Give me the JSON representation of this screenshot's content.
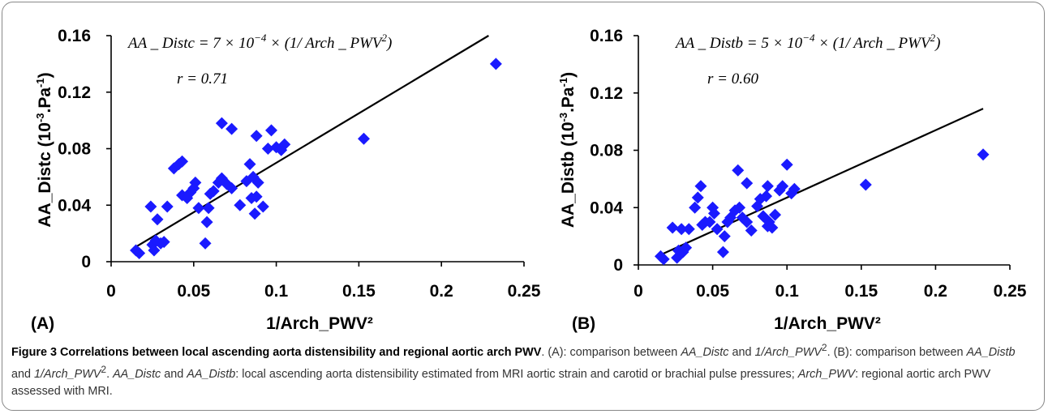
{
  "chart_data": [
    {
      "type": "scatter",
      "panel_label": "(A)",
      "xlabel": "1/Arch_PWV²",
      "ylabel_main": "AA_Distc (10",
      "ylabel_exp1": "-3",
      "ylabel_mid": ".Pa",
      "ylabel_exp2": "-1",
      "ylabel_end": ")",
      "equation_lhs": "AA _ Distc = 7 × 10",
      "equation_exp": "−4",
      "equation_rhs": " × (1/ Arch _ PWV",
      "equation_sq": "2",
      "equation_close": ")",
      "r_label": "r = 0.71",
      "xlim": [
        0,
        0.25
      ],
      "ylim": [
        0,
        0.16
      ],
      "x_ticks": [
        "0",
        "0.05",
        "0.1",
        "0.15",
        "0.2",
        "0.25"
      ],
      "y_ticks": [
        "0",
        "0.04",
        "0.08",
        "0.12",
        "0.16"
      ],
      "fit": {
        "slope": 0.7,
        "x_start": 0.015,
        "x_end": 0.23
      },
      "marker_color": "#1a1aff",
      "points": [
        [
          0.015,
          0.008
        ],
        [
          0.017,
          0.006
        ],
        [
          0.024,
          0.039
        ],
        [
          0.025,
          0.012
        ],
        [
          0.026,
          0.008
        ],
        [
          0.027,
          0.015
        ],
        [
          0.028,
          0.03
        ],
        [
          0.03,
          0.013
        ],
        [
          0.032,
          0.014
        ],
        [
          0.034,
          0.039
        ],
        [
          0.038,
          0.066
        ],
        [
          0.041,
          0.069
        ],
        [
          0.043,
          0.071
        ],
        [
          0.043,
          0.047
        ],
        [
          0.046,
          0.045
        ],
        [
          0.048,
          0.049
        ],
        [
          0.05,
          0.052
        ],
        [
          0.051,
          0.056
        ],
        [
          0.053,
          0.038
        ],
        [
          0.057,
          0.013
        ],
        [
          0.058,
          0.028
        ],
        [
          0.059,
          0.038
        ],
        [
          0.06,
          0.048
        ],
        [
          0.062,
          0.05
        ],
        [
          0.065,
          0.056
        ],
        [
          0.067,
          0.098
        ],
        [
          0.067,
          0.059
        ],
        [
          0.07,
          0.055
        ],
        [
          0.073,
          0.094
        ],
        [
          0.073,
          0.052
        ],
        [
          0.078,
          0.04
        ],
        [
          0.082,
          0.057
        ],
        [
          0.084,
          0.069
        ],
        [
          0.085,
          0.045
        ],
        [
          0.086,
          0.06
        ],
        [
          0.087,
          0.034
        ],
        [
          0.088,
          0.089
        ],
        [
          0.088,
          0.046
        ],
        [
          0.089,
          0.056
        ],
        [
          0.092,
          0.039
        ],
        [
          0.095,
          0.08
        ],
        [
          0.097,
          0.093
        ],
        [
          0.1,
          0.081
        ],
        [
          0.103,
          0.079
        ],
        [
          0.105,
          0.083
        ],
        [
          0.153,
          0.087
        ],
        [
          0.233,
          0.14
        ]
      ]
    },
    {
      "type": "scatter",
      "panel_label": "(B)",
      "xlabel": "1/Arch_PWV²",
      "ylabel_main": "AA_Distb (10",
      "ylabel_exp1": "-3",
      "ylabel_mid": ".Pa",
      "ylabel_exp2": "-1",
      "ylabel_end": ")",
      "equation_lhs": "AA _ Distb = 5 × 10",
      "equation_exp": "−4",
      "equation_rhs": " × (1/ Arch _ PWV",
      "equation_sq": "2",
      "equation_close": ")",
      "r_label": "r = 0.60",
      "xlim": [
        0,
        0.25
      ],
      "ylim": [
        0,
        0.16
      ],
      "x_ticks": [
        "0",
        "0.05",
        "0.1",
        "0.15",
        "0.2",
        "0.25"
      ],
      "y_ticks": [
        "0",
        "0.04",
        "0.08",
        "0.12",
        "0.16"
      ],
      "fit": {
        "slope": 0.47,
        "x_start": 0.015,
        "x_end": 0.232
      },
      "marker_color": "#1a1aff",
      "points": [
        [
          0.015,
          0.006
        ],
        [
          0.017,
          0.004
        ],
        [
          0.023,
          0.026
        ],
        [
          0.026,
          0.005
        ],
        [
          0.027,
          0.01
        ],
        [
          0.029,
          0.025
        ],
        [
          0.03,
          0.009
        ],
        [
          0.032,
          0.012
        ],
        [
          0.034,
          0.025
        ],
        [
          0.038,
          0.04
        ],
        [
          0.04,
          0.047
        ],
        [
          0.042,
          0.055
        ],
        [
          0.043,
          0.028
        ],
        [
          0.045,
          0.03
        ],
        [
          0.048,
          0.03
        ],
        [
          0.05,
          0.04
        ],
        [
          0.051,
          0.036
        ],
        [
          0.053,
          0.025
        ],
        [
          0.057,
          0.009
        ],
        [
          0.058,
          0.02
        ],
        [
          0.06,
          0.03
        ],
        [
          0.062,
          0.033
        ],
        [
          0.065,
          0.038
        ],
        [
          0.067,
          0.066
        ],
        [
          0.068,
          0.04
        ],
        [
          0.07,
          0.033
        ],
        [
          0.073,
          0.057
        ],
        [
          0.073,
          0.03
        ],
        [
          0.076,
          0.024
        ],
        [
          0.08,
          0.041
        ],
        [
          0.082,
          0.046
        ],
        [
          0.084,
          0.034
        ],
        [
          0.086,
          0.048
        ],
        [
          0.087,
          0.027
        ],
        [
          0.087,
          0.055
        ],
        [
          0.088,
          0.03
        ],
        [
          0.09,
          0.026
        ],
        [
          0.092,
          0.035
        ],
        [
          0.095,
          0.052
        ],
        [
          0.097,
          0.055
        ],
        [
          0.1,
          0.07
        ],
        [
          0.103,
          0.05
        ],
        [
          0.105,
          0.053
        ],
        [
          0.153,
          0.056
        ],
        [
          0.232,
          0.077
        ]
      ]
    }
  ],
  "caption": {
    "title": "Figure 3 Correlations between local ascending aorta distensibility and regional aortic arch PWV",
    "t1": ". (A): comparison between ",
    "i1": "AA_Distc",
    "t2": " and ",
    "i2": "1/Arch_PWV",
    "t3": ". (B): comparison between ",
    "i3": "AA_Distb",
    "t4": " and ",
    "i4": "1/Arch_PWV",
    "t5": ". ",
    "i5": "AA_Distc",
    "t6": " and ",
    "i6": "AA_Distb",
    "t7": ": local ascending aorta distensibility estimated from MRI aortic strain and carotid or brachial pulse pressures; ",
    "i7": "Arch_PWV",
    "t8": ": regional aortic arch PWV assessed with MRI.",
    "sup": "2"
  }
}
